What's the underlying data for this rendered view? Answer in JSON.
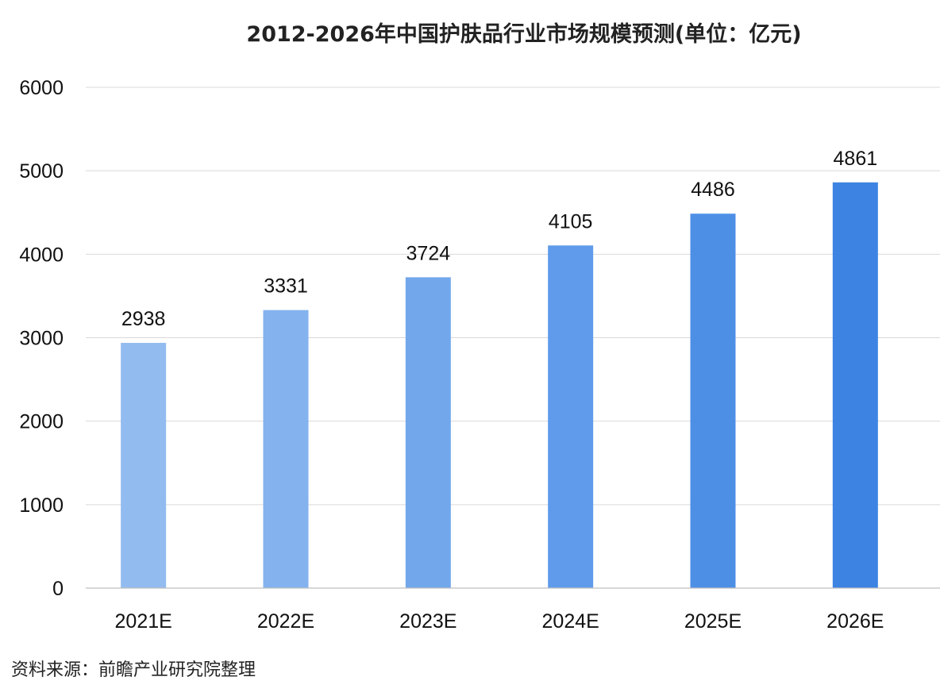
{
  "chart_data": {
    "type": "bar",
    "title": "2012-2026年中国护肤品行业市场规模预测(单位：亿元)",
    "categories": [
      "2021E",
      "2022E",
      "2023E",
      "2024E",
      "2025E",
      "2026E"
    ],
    "values": [
      2938,
      3331,
      3724,
      4105,
      4486,
      4861
    ],
    "yticks": [
      "0",
      "1000",
      "2000",
      "3000",
      "4000",
      "5000",
      "6000"
    ],
    "ylim": [
      0,
      6000
    ],
    "grid": true,
    "bar_colors": [
      "#92bbef",
      "#84b2ee",
      "#72a7ec",
      "#5f9bea",
      "#4e8fe6",
      "#3d83e2"
    ]
  },
  "source": "资料来源：前瞻产业研究院整理"
}
